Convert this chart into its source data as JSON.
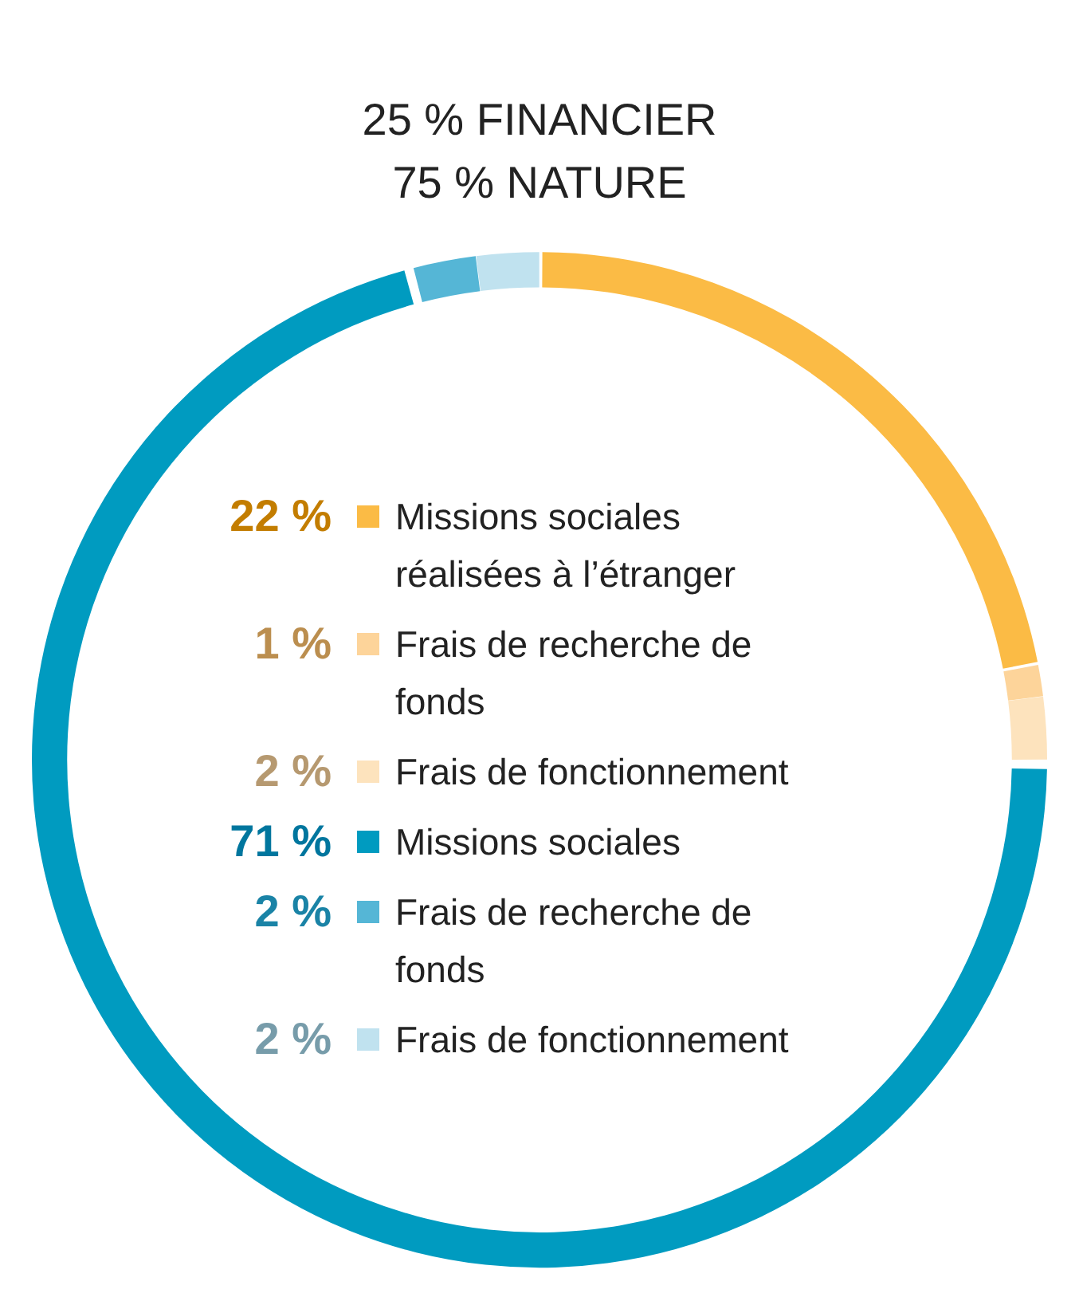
{
  "chart_data": {
    "type": "donut",
    "title": "25 % FINANCIER",
    "subtitle": "75 % NATURE",
    "categories": [
      "Missions sociales réalisées à l’étranger",
      "Frais de recherche de fonds",
      "Frais de fonctionnement",
      "Missions sociales",
      "Frais de recherche de fonds",
      "Frais de fonctionnement"
    ],
    "values": [
      22,
      1,
      2,
      71,
      2,
      2
    ],
    "value_labels": [
      "22 %",
      "1 %",
      "2 %",
      "71 %",
      "2 %",
      "2 %"
    ],
    "colors": [
      "#fbbb45",
      "#fdd49a",
      "#fde3bd",
      "#009bc0",
      "#55b6d6",
      "#c0e2ef"
    ],
    "legend": "center"
  }
}
